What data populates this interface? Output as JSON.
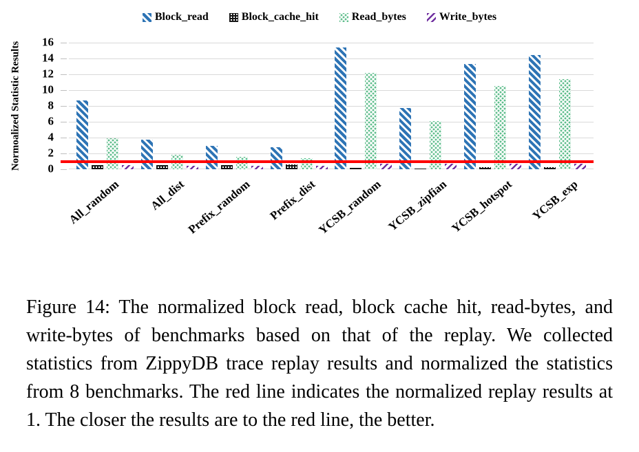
{
  "figure": {
    "caption": "Figure 14: The normalized block read, block cache hit, read-bytes, and write-bytes of benchmarks based on that of the replay. We collected statistics from ZippyDB trace replay results and normalized the statistics from 8 benchmarks. The red line indicates the normalized replay results at 1. The closer the results are to the red line, the better."
  },
  "chart_data": {
    "type": "bar",
    "title": "",
    "xlabel": "",
    "ylabel": "Normoalized Statistic Results",
    "ylim": [
      0,
      16
    ],
    "yticks": [
      0,
      2,
      4,
      6,
      8,
      10,
      12,
      14,
      16
    ],
    "grid": true,
    "legend_position": "top",
    "categories": [
      "All_random",
      "All_dist",
      "Prefix_random",
      "Prefix_dist",
      "YCSB_random",
      "YCSB_zipfian",
      "YCSB_hotspot",
      "YCSB_exp"
    ],
    "series": [
      {
        "name": "Block_read",
        "color": "#2e74b5",
        "pattern": "diagonal-stripes-down",
        "values": [
          8.7,
          3.7,
          3.0,
          2.8,
          15.4,
          7.7,
          13.3,
          14.4
        ]
      },
      {
        "name": "Block_cache_hit",
        "color": "#161616",
        "pattern": "grid",
        "values": [
          0.5,
          0.5,
          0.55,
          0.6,
          0.2,
          0.1,
          0.25,
          0.25
        ]
      },
      {
        "name": "Read_bytes",
        "color": "#5fbd8c",
        "pattern": "dots",
        "values": [
          3.9,
          1.8,
          1.6,
          1.4,
          12.2,
          6.1,
          10.5,
          11.4
        ]
      },
      {
        "name": "Write_bytes",
        "color": "#7030a0",
        "pattern": "diagonal-stripes-up",
        "values": [
          0.5,
          0.45,
          0.45,
          0.45,
          0.7,
          0.7,
          0.7,
          0.7
        ]
      }
    ],
    "reference_line": {
      "value": 1,
      "color": "#fe0000"
    },
    "gridline_color": "#d9d9d9"
  }
}
